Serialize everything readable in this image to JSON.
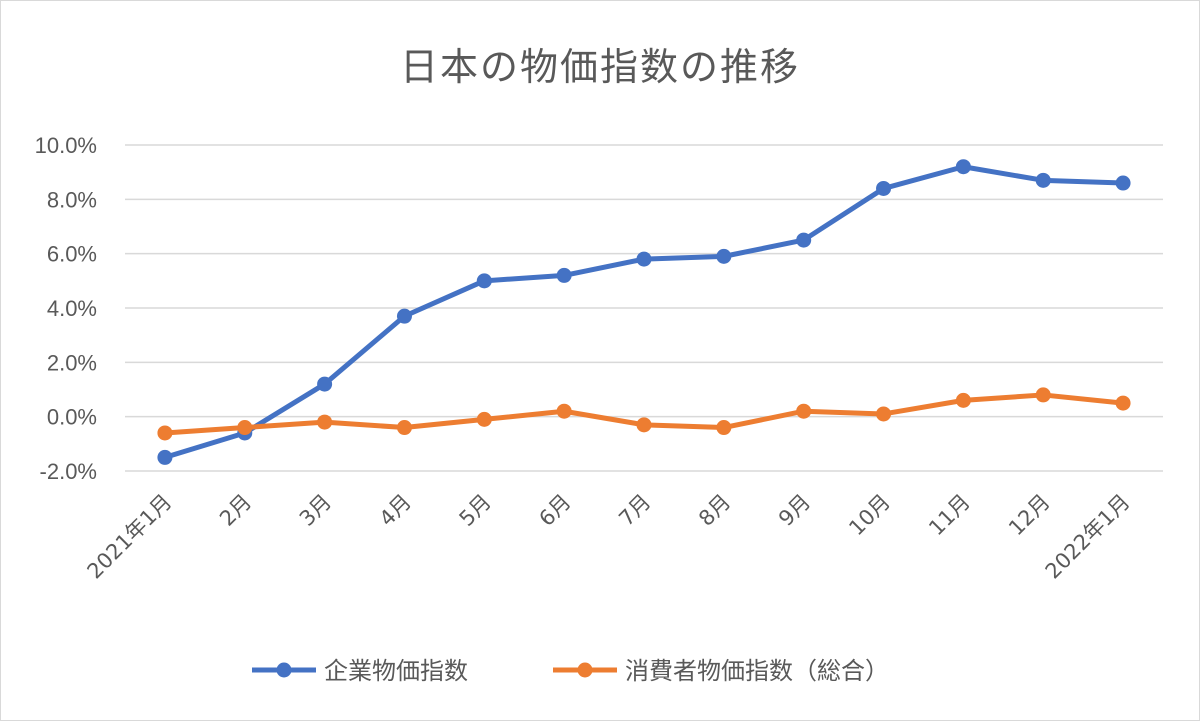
{
  "chart_data": {
    "type": "line",
    "title": "日本の物価指数の推移",
    "categories": [
      "2021年1月",
      "2月",
      "3月",
      "4月",
      "5月",
      "6月",
      "7月",
      "8月",
      "9月",
      "10月",
      "11月",
      "12月",
      "2022年1月"
    ],
    "series": [
      {
        "name": "企業物価指数",
        "color": "#4472c4",
        "values": [
          -1.5,
          -0.6,
          1.2,
          3.7,
          5.0,
          5.2,
          5.8,
          5.9,
          6.5,
          8.4,
          9.2,
          8.7,
          8.6
        ]
      },
      {
        "name": "消費者物価指数（総合）",
        "color": "#ed7d31",
        "values": [
          -0.6,
          -0.4,
          -0.2,
          -0.4,
          -0.1,
          0.2,
          -0.3,
          -0.4,
          0.2,
          0.1,
          0.6,
          0.8,
          0.5
        ]
      }
    ],
    "ylim": [
      -2,
      10
    ],
    "yticks": [
      "-2.0%",
      "0.0%",
      "2.0%",
      "4.0%",
      "6.0%",
      "8.0%",
      "10.0%"
    ],
    "grid": true,
    "legend_position": "bottom"
  }
}
